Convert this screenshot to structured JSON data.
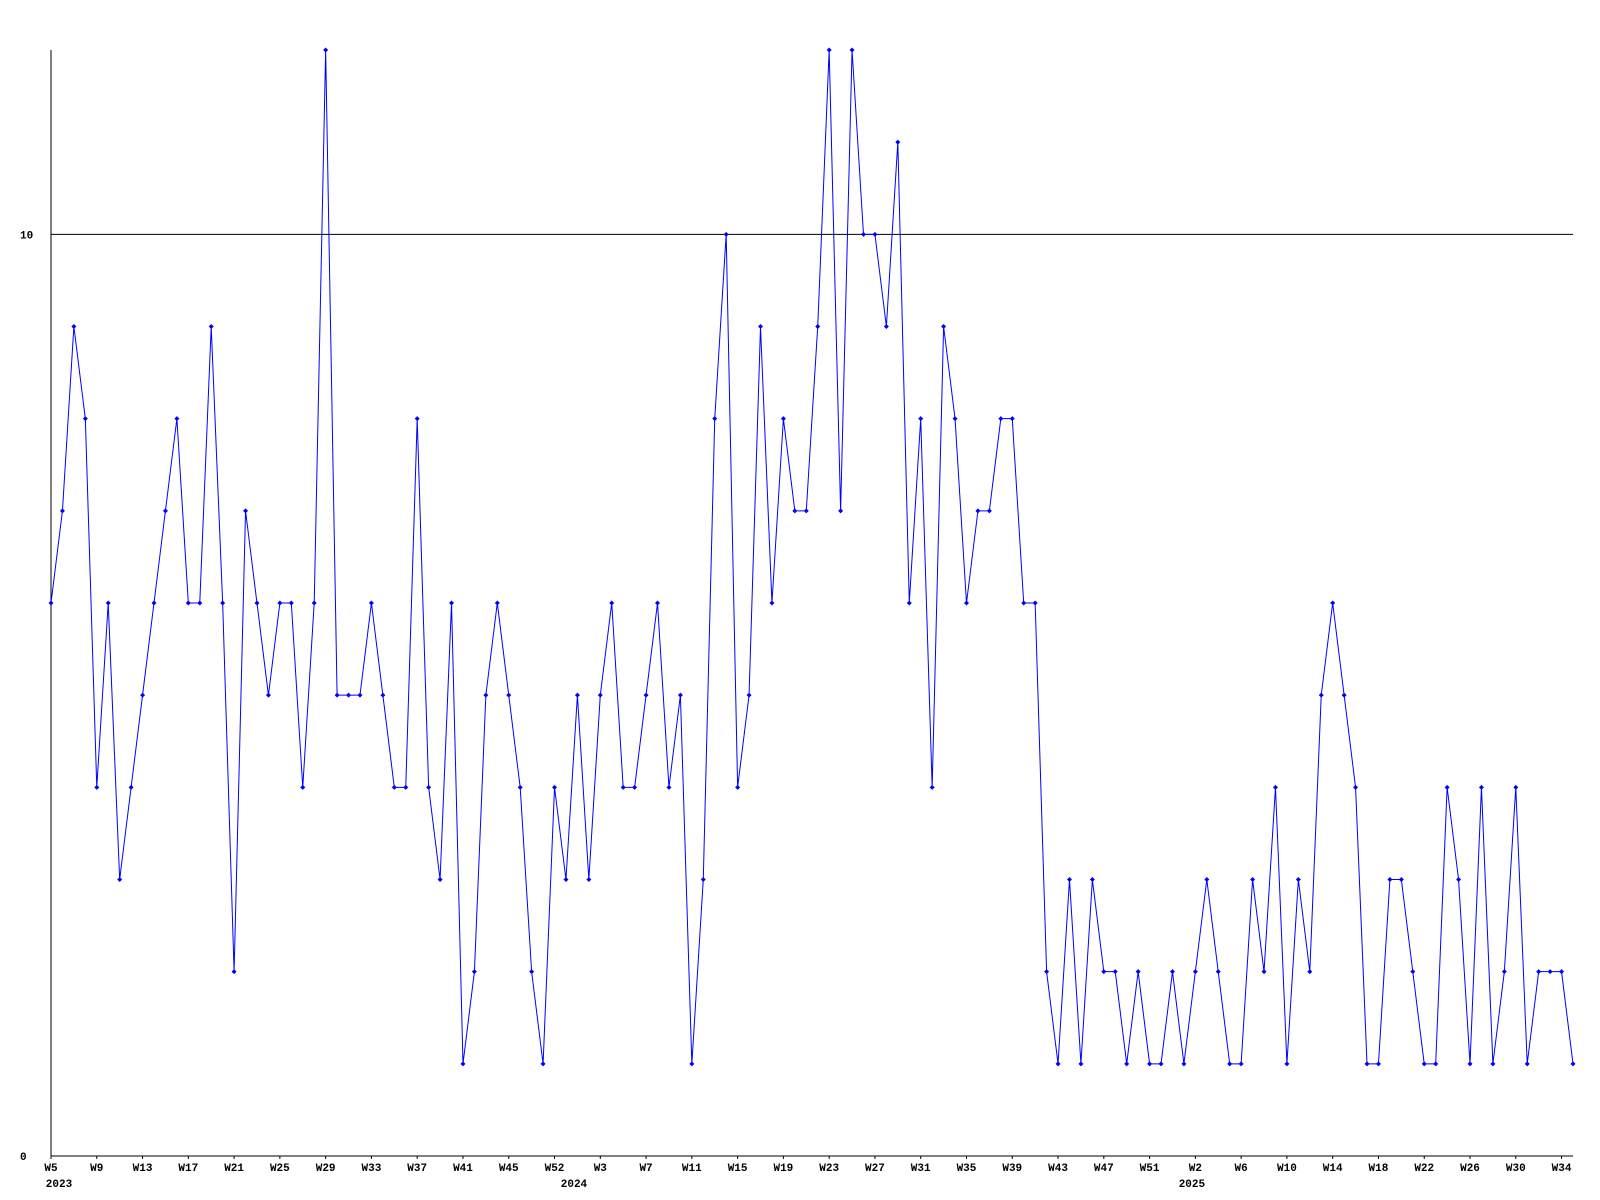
{
  "chart_data": {
    "type": "line",
    "ylim": [
      0,
      12
    ],
    "yticks": [
      0,
      10
    ],
    "grid": true,
    "categories": [
      "W5",
      null,
      null,
      null,
      "W9",
      null,
      null,
      null,
      "W13",
      null,
      null,
      null,
      "W17",
      null,
      null,
      null,
      "W21",
      null,
      null,
      null,
      "W25",
      null,
      null,
      null,
      "W29",
      null,
      null,
      null,
      "W33",
      null,
      null,
      null,
      "W37",
      null,
      null,
      null,
      "W41",
      null,
      null,
      null,
      "W45",
      null,
      null,
      null,
      "W52",
      null,
      null,
      null,
      "W3",
      null,
      null,
      null,
      "W7",
      null,
      null,
      null,
      "W11",
      null,
      null,
      null,
      "W15",
      null,
      null,
      null,
      "W19",
      null,
      null,
      null,
      "W23",
      null,
      null,
      null,
      "W27",
      null,
      null,
      null,
      "W31",
      null,
      null,
      null,
      "W35",
      null,
      null,
      null,
      "W39",
      null,
      null,
      null,
      "W43",
      null,
      null,
      null,
      "W47",
      null,
      null,
      null,
      "W51",
      null,
      null,
      null,
      "W2",
      null,
      null,
      null,
      "W6",
      null,
      null,
      null,
      "W10",
      null,
      null,
      null,
      "W14",
      null,
      null,
      null,
      "W18",
      null,
      null,
      null,
      "W22",
      null,
      null,
      null,
      "W26",
      null,
      null,
      null,
      "W30",
      null,
      null,
      null,
      "W34",
      null
    ],
    "years": [
      "2023",
      null,
      null,
      null,
      null,
      null,
      null,
      null,
      null,
      null,
      null,
      null,
      null,
      null,
      null,
      null,
      null,
      null,
      null,
      null,
      null,
      null,
      null,
      null,
      null,
      null,
      null,
      null,
      null,
      null,
      null,
      null,
      null,
      null,
      null,
      null,
      null,
      null,
      null,
      null,
      null,
      null,
      null,
      null,
      null,
      "2024",
      null,
      null,
      null,
      null,
      null,
      null,
      null,
      null,
      null,
      null,
      null,
      null,
      null,
      null,
      null,
      null,
      null,
      null,
      null,
      null,
      null,
      null,
      null,
      null,
      null,
      null,
      null,
      null,
      null,
      null,
      null,
      null,
      null,
      null,
      null,
      null,
      null,
      null,
      null,
      null,
      null,
      null,
      null,
      null,
      null,
      null,
      null,
      null,
      null,
      null,
      null,
      null,
      null,
      "2025",
      null,
      null,
      null,
      null,
      null,
      null,
      null,
      null,
      null,
      null,
      null,
      null,
      null,
      null,
      null,
      null,
      null,
      null,
      null,
      null,
      null,
      null,
      null,
      null,
      null,
      null,
      null,
      null,
      null,
      null,
      null,
      null,
      null
    ],
    "series": [
      {
        "color": "#0000ff",
        "values": [
          6,
          7,
          9,
          8,
          4,
          6,
          3,
          4,
          5,
          6,
          7,
          8,
          6,
          6,
          9,
          6,
          2,
          7,
          6,
          5,
          6,
          6,
          4,
          6,
          12,
          5,
          5,
          5,
          6,
          5,
          4,
          4,
          8,
          4,
          3,
          6,
          1,
          2,
          5,
          6,
          5,
          4,
          2,
          1,
          4,
          3,
          5,
          3,
          5,
          6,
          4,
          4,
          5,
          6,
          4,
          5,
          1,
          3,
          8,
          10,
          4,
          5,
          9,
          6,
          8,
          7,
          7,
          9,
          12,
          7,
          12,
          10,
          10,
          9,
          11,
          6,
          8,
          4,
          9,
          8,
          6,
          7,
          7,
          8,
          8,
          6,
          6,
          2,
          1,
          3,
          1,
          3,
          2,
          2,
          1,
          2,
          1,
          1,
          2,
          1,
          2,
          3,
          2,
          1,
          1,
          3,
          2,
          4,
          1,
          3,
          2,
          5,
          6,
          5,
          4,
          1,
          1,
          3,
          3,
          2,
          1,
          1,
          4,
          3,
          1,
          4,
          1,
          2,
          4,
          1,
          2,
          2,
          2,
          1
        ]
      }
    ]
  }
}
